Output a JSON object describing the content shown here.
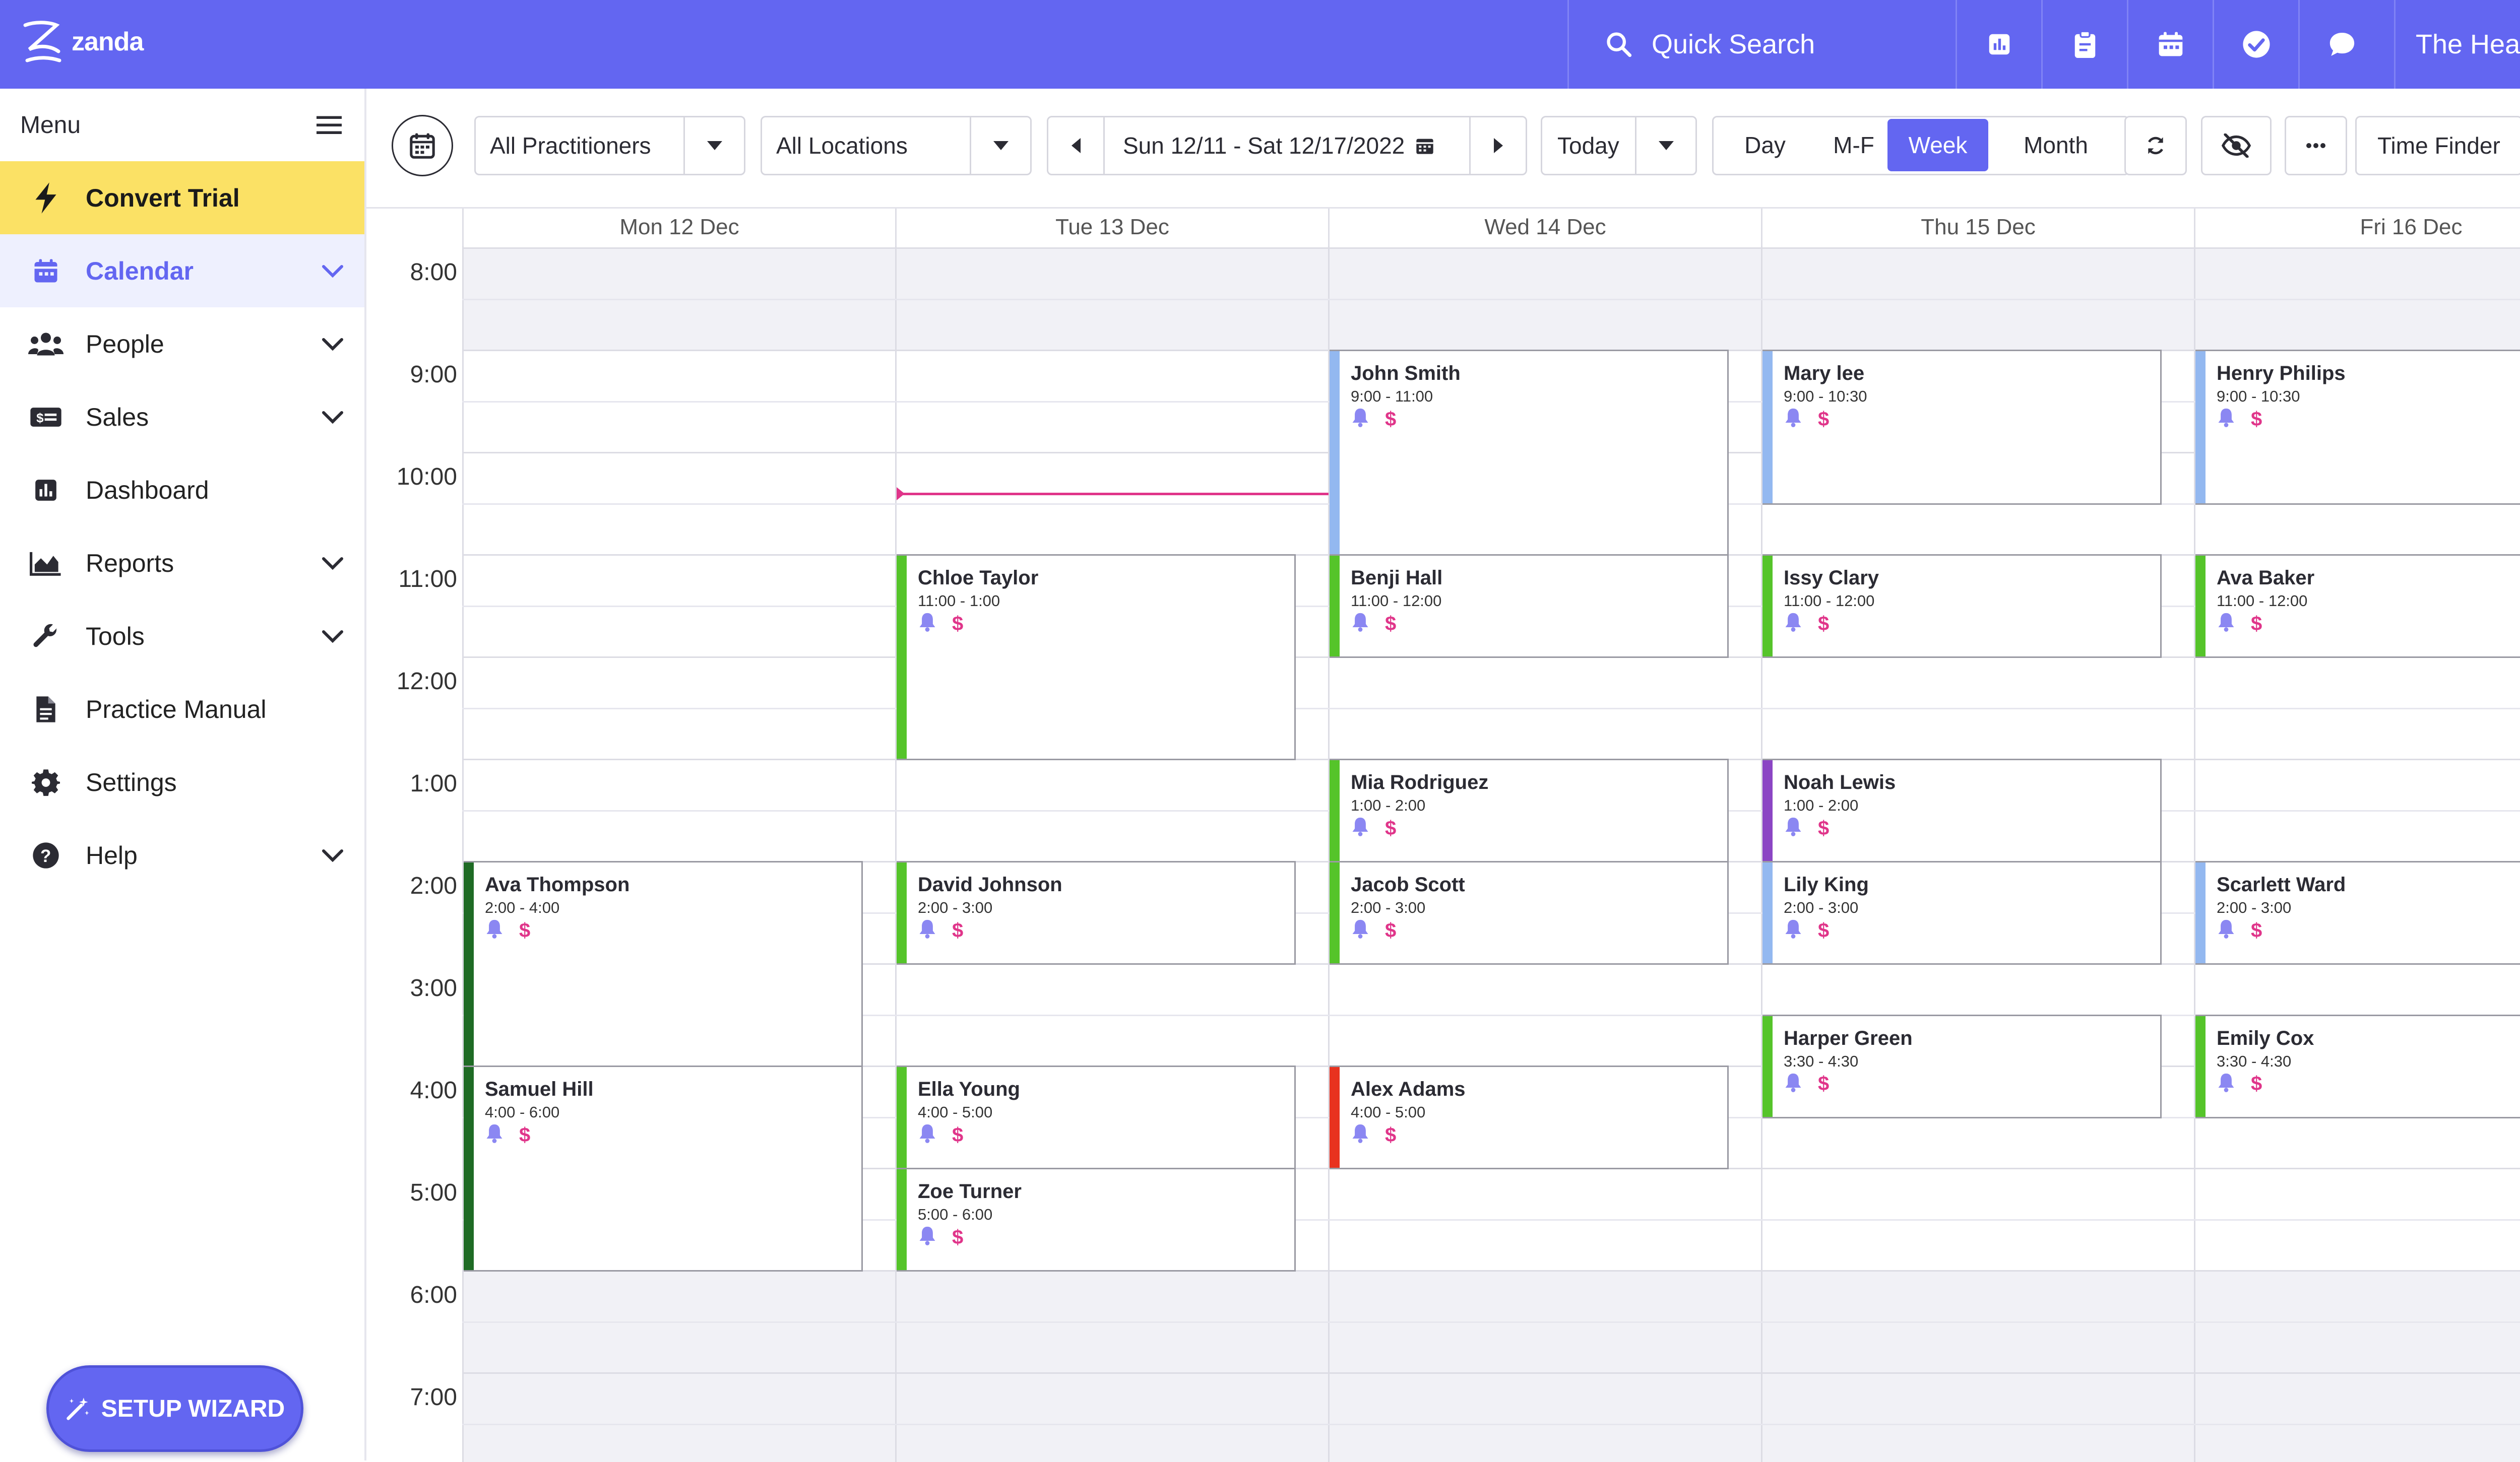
{
  "app": {
    "logo_text": "zanda"
  },
  "header": {
    "quick_search": "Quick Search",
    "icons": [
      "chart-icon",
      "clipboard-icon",
      "calendar-icon",
      "check-circle-icon",
      "chat-icon"
    ],
    "account": "The Healt..."
  },
  "sidebar": {
    "menu_label": "Menu",
    "items": [
      {
        "label": "Convert Trial",
        "icon": "lightning-icon",
        "has_chevron": false
      },
      {
        "label": "Calendar",
        "icon": "calendar-icon",
        "has_chevron": true
      },
      {
        "label": "People",
        "icon": "people-icon",
        "has_chevron": true
      },
      {
        "label": "Sales",
        "icon": "money-icon",
        "has_chevron": true
      },
      {
        "label": "Dashboard",
        "icon": "dashboard-icon",
        "has_chevron": false
      },
      {
        "label": "Reports",
        "icon": "area-chart-icon",
        "has_chevron": true
      },
      {
        "label": "Tools",
        "icon": "wrench-icon",
        "has_chevron": true
      },
      {
        "label": "Practice Manual",
        "icon": "document-icon",
        "has_chevron": false
      },
      {
        "label": "Settings",
        "icon": "gear-icon",
        "has_chevron": false
      },
      {
        "label": "Help",
        "icon": "help-icon",
        "has_chevron": true
      }
    ],
    "setup_wizard": "SETUP WIZARD"
  },
  "toolbar": {
    "practitioners": "All Practitioners",
    "locations": "All Locations",
    "date_range": "Sun 12/11 - Sat 12/17/2022",
    "today": "Today",
    "views": [
      "Day",
      "M-F",
      "Week",
      "Month"
    ],
    "active_view": "Week",
    "time_finder": "Time Finder"
  },
  "calendar": {
    "days": [
      "Mon 12 Dec",
      "Tue 13 Dec",
      "Wed 14 Dec",
      "Thu 15 Dec",
      "Fri 16 Dec"
    ],
    "hours": [
      "8:00",
      "9:00",
      "10:00",
      "11:00",
      "12:00",
      "1:00",
      "2:00",
      "3:00",
      "4:00",
      "5:00",
      "6:00",
      "7:00"
    ],
    "colors": {
      "green": "#55c42a",
      "darkgreen": "#1f6b25",
      "blue": "#93b8f0",
      "purple": "#8b45c4",
      "red": "#e8321f",
      "accent": "#6366f1",
      "now": "#e0358a"
    },
    "appointments": [
      {
        "day": 0,
        "name": "Ava Thompson",
        "time": "2:00 - 4:00",
        "start": 14,
        "end": 16,
        "color": "darkgreen"
      },
      {
        "day": 0,
        "name": "Samuel Hill",
        "time": "4:00 - 6:00",
        "start": 16,
        "end": 18,
        "color": "darkgreen"
      },
      {
        "day": 1,
        "name": "Chloe Taylor",
        "time": "11:00 - 1:00",
        "start": 11,
        "end": 13,
        "color": "green"
      },
      {
        "day": 1,
        "name": "David Johnson",
        "time": "2:00 - 3:00",
        "start": 14,
        "end": 15,
        "color": "green"
      },
      {
        "day": 1,
        "name": "Ella Young",
        "time": "4:00 - 5:00",
        "start": 16,
        "end": 17,
        "color": "green"
      },
      {
        "day": 1,
        "name": "Zoe Turner",
        "time": "5:00 - 6:00",
        "start": 17,
        "end": 18,
        "color": "green"
      },
      {
        "day": 2,
        "name": "John Smith",
        "time": "9:00 - 11:00",
        "start": 9,
        "end": 11,
        "color": "blue"
      },
      {
        "day": 2,
        "name": "Benji Hall",
        "time": "11:00 - 12:00",
        "start": 11,
        "end": 12,
        "color": "green"
      },
      {
        "day": 2,
        "name": "Mia Rodriguez",
        "time": "1:00 - 2:00",
        "start": 13,
        "end": 14,
        "color": "green"
      },
      {
        "day": 2,
        "name": "Jacob Scott",
        "time": "2:00 - 3:00",
        "start": 14,
        "end": 15,
        "color": "green"
      },
      {
        "day": 2,
        "name": "Alex Adams",
        "time": "4:00 - 5:00",
        "start": 16,
        "end": 17,
        "color": "red"
      },
      {
        "day": 3,
        "name": "Mary lee",
        "time": "9:00 - 10:30",
        "start": 9,
        "end": 10.5,
        "color": "blue"
      },
      {
        "day": 3,
        "name": "Issy Clary",
        "time": "11:00 - 12:00",
        "start": 11,
        "end": 12,
        "color": "green"
      },
      {
        "day": 3,
        "name": "Noah Lewis",
        "time": "1:00 - 2:00",
        "start": 13,
        "end": 14,
        "color": "purple"
      },
      {
        "day": 3,
        "name": "Lily King",
        "time": "2:00 - 3:00",
        "start": 14,
        "end": 15,
        "color": "blue"
      },
      {
        "day": 3,
        "name": "Harper Green",
        "time": "3:30 - 4:30",
        "start": 15.5,
        "end": 16.5,
        "color": "green"
      },
      {
        "day": 4,
        "name": "Henry Philips",
        "time": "9:00 - 10:30",
        "start": 9,
        "end": 10.5,
        "color": "blue"
      },
      {
        "day": 4,
        "name": "Ava Baker",
        "time": "11:00 - 12:00",
        "start": 11,
        "end": 12,
        "color": "green"
      },
      {
        "day": 4,
        "name": "Scarlett Ward",
        "time": "2:00 - 3:00",
        "start": 14,
        "end": 15,
        "color": "blue"
      },
      {
        "day": 4,
        "name": "Emily Cox",
        "time": "3:30 - 4:30",
        "start": 15.5,
        "end": 16.5,
        "color": "green"
      }
    ],
    "current_time_marker": {
      "day": 1,
      "hour": 10.4
    }
  }
}
